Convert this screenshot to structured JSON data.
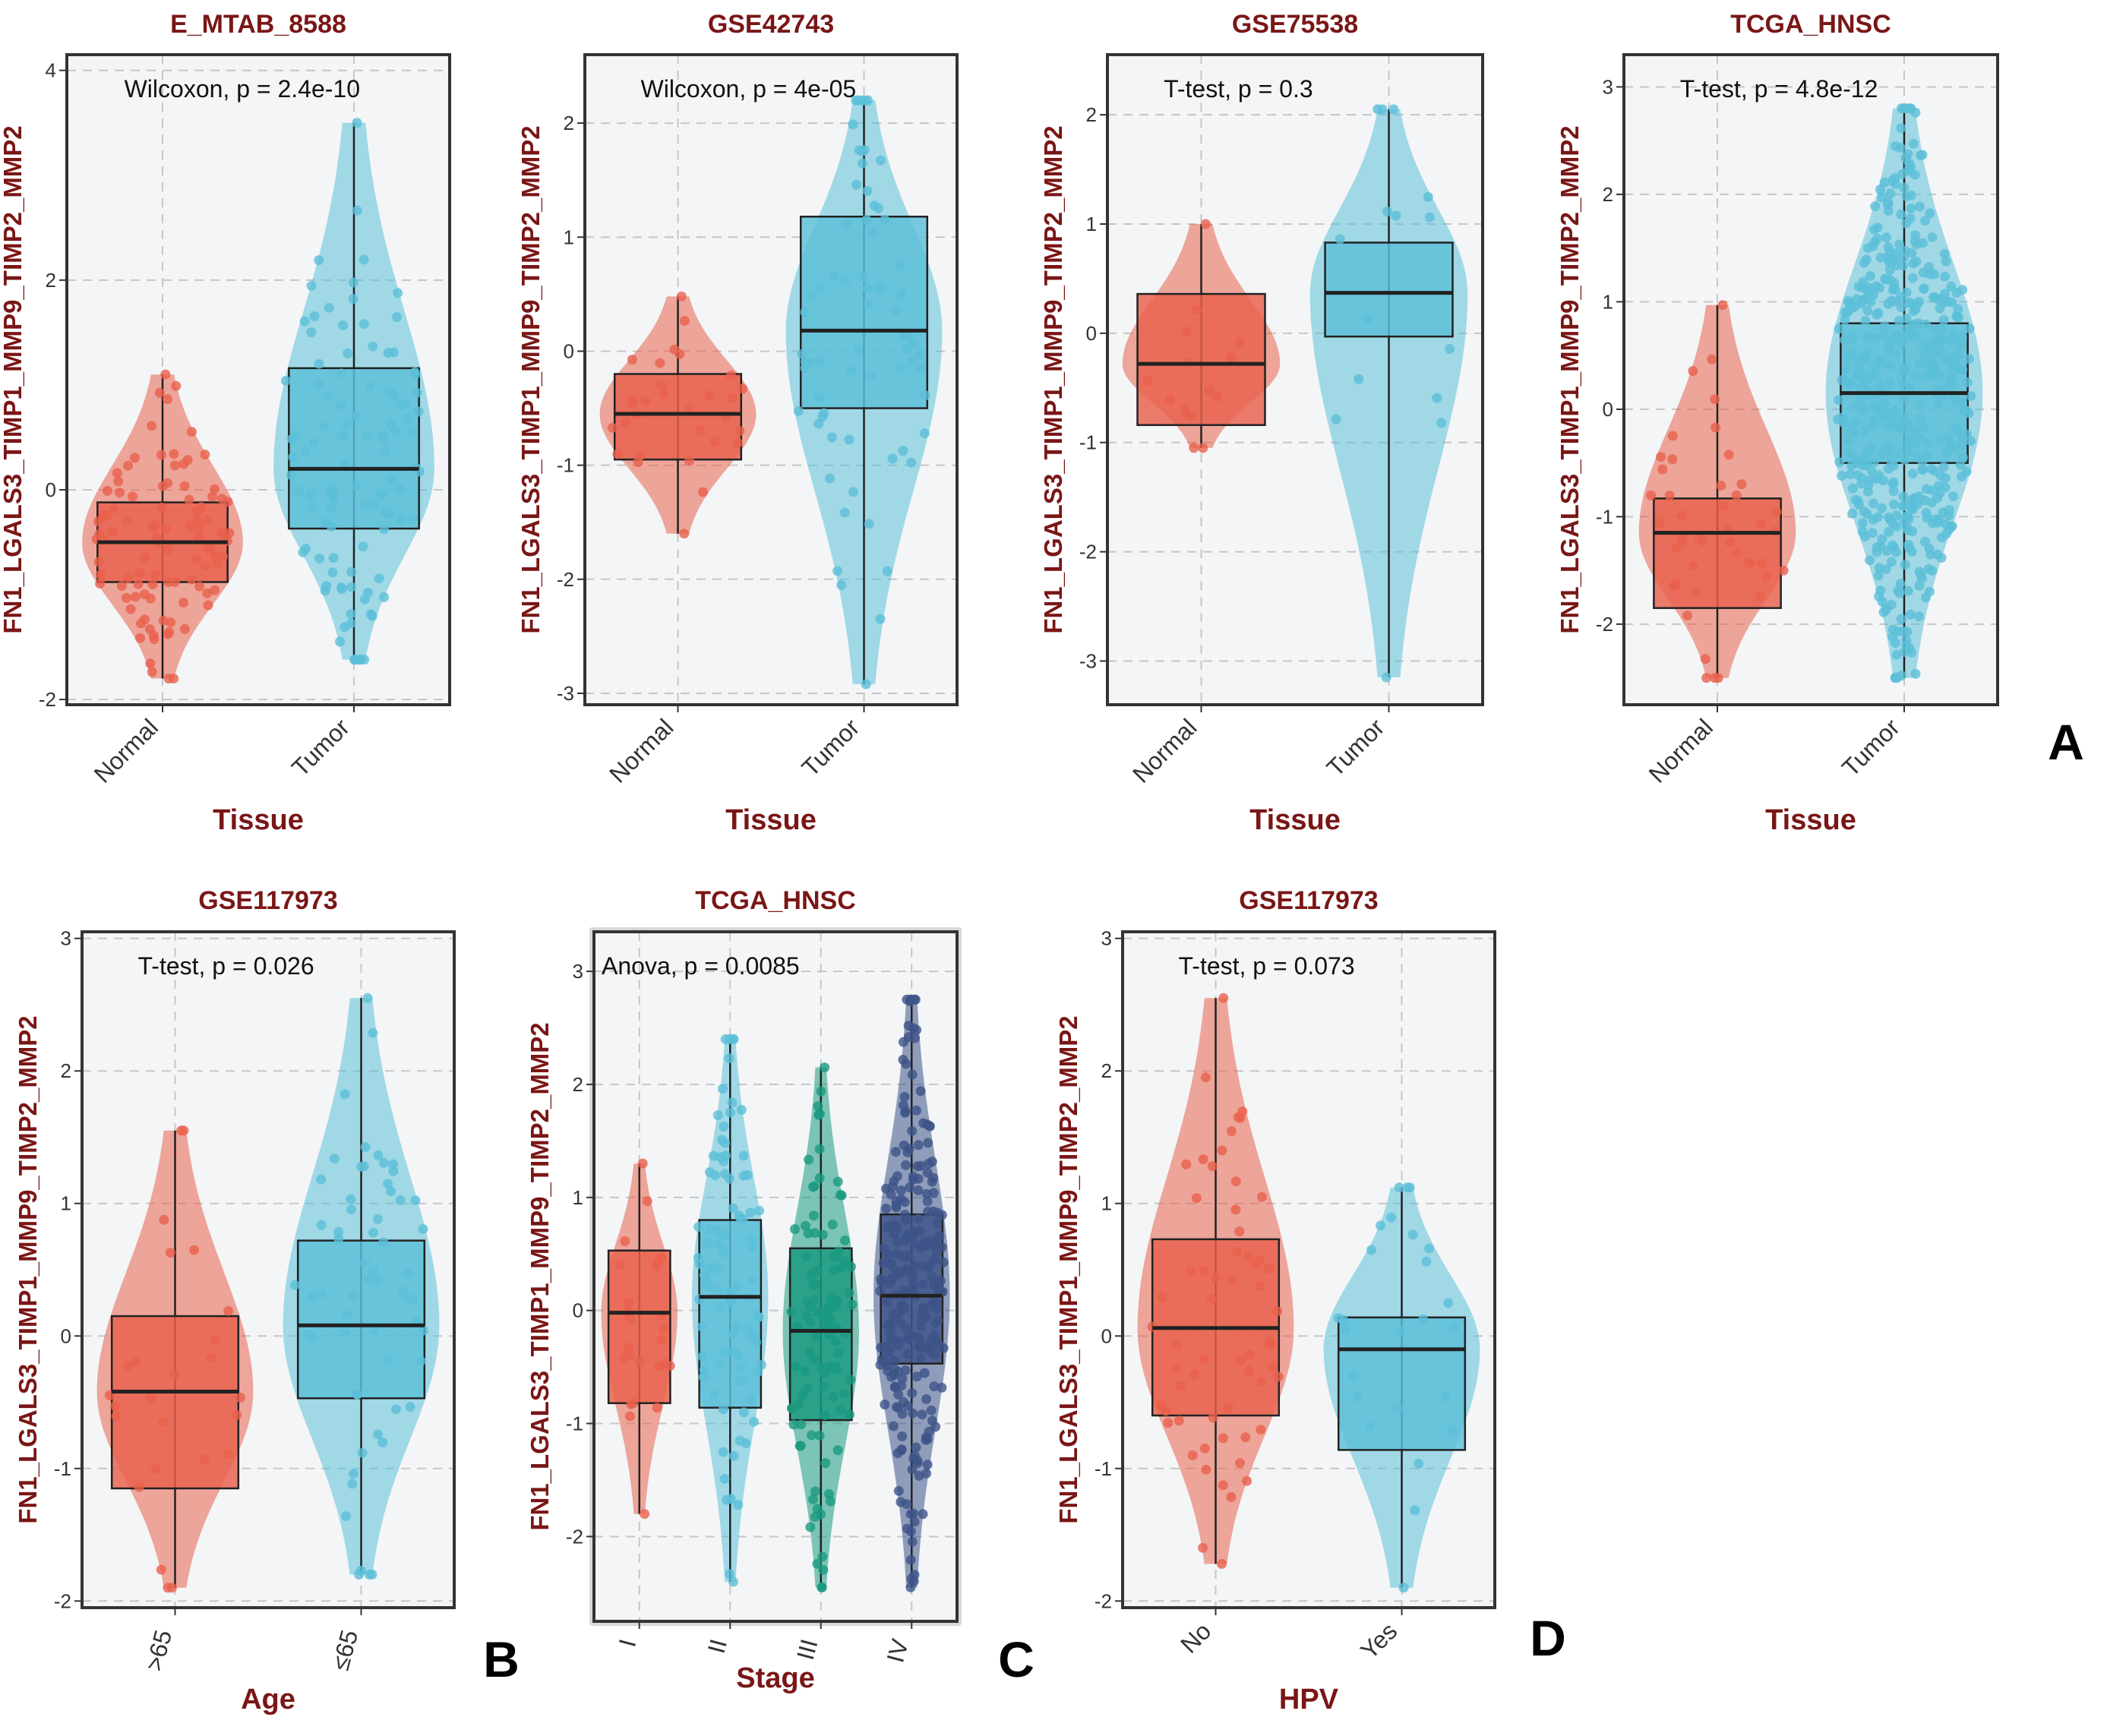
{
  "figure": {
    "panel_letters": [
      "A",
      "B",
      "C",
      "D"
    ],
    "colors": {
      "normal": "#e8604c",
      "tumor": "#5bbfd8",
      "stage_I": "#e8604c",
      "stage_II": "#5bbfd8",
      "stage_III": "#1a9a80",
      "stage_IV": "#3d5488",
      "title": "#7a1616"
    }
  },
  "chart_data": [
    {
      "type": "boxplot",
      "panel": "A",
      "title": "E_MTAB_8588",
      "xlabel": "Tissue",
      "ylabel": "FN1_LGALS3_TIMP1_MMP9_TIMP2_MMP2",
      "ylim": [
        -2.05,
        4.15
      ],
      "yticks": [
        -2,
        0,
        2,
        4
      ],
      "stat_label": "Wilcoxon, p = 2.4e-10",
      "groups": [
        {
          "name": "Normal",
          "color": "#e8604c",
          "n": 100,
          "min": -1.8,
          "q1": -0.88,
          "median": -0.5,
          "q3": -0.12,
          "max": 1.1,
          "violin": [
            -1.8,
            1.1
          ]
        },
        {
          "name": "Tumor",
          "color": "#5bbfd8",
          "n": 110,
          "min": -1.62,
          "q1": -0.37,
          "median": 0.2,
          "q3": 1.16,
          "max": 3.5,
          "violin": [
            -1.62,
            3.5
          ]
        }
      ]
    },
    {
      "type": "boxplot",
      "panel": "A",
      "title": "GSE42743",
      "xlabel": "Tissue",
      "ylabel": "FN1_LGALS3_TIMP1_MMP9_TIMP2_MMP2",
      "ylim": [
        -3.1,
        2.6
      ],
      "yticks": [
        -3,
        -2,
        -1,
        0,
        1,
        2
      ],
      "stat_label": "Wilcoxon, p = 4e-05",
      "groups": [
        {
          "name": "Normal",
          "color": "#e8604c",
          "n": 30,
          "min": -1.6,
          "q1": -0.95,
          "median": -0.55,
          "q3": -0.2,
          "max": 0.48,
          "violin": [
            -1.6,
            0.48
          ]
        },
        {
          "name": "Tumor",
          "color": "#5bbfd8",
          "n": 70,
          "min": -2.92,
          "q1": -0.5,
          "median": 0.18,
          "q3": 1.18,
          "max": 2.2,
          "violin": [
            -2.92,
            2.2
          ]
        }
      ]
    },
    {
      "type": "boxplot",
      "panel": "A",
      "title": "GSE75538",
      "xlabel": "Tissue",
      "ylabel": "FN1_LGALS3_TIMP1_MMP9_TIMP2_MMP2",
      "ylim": [
        -3.4,
        2.55
      ],
      "yticks": [
        -3,
        -2,
        -1,
        0,
        1,
        2
      ],
      "stat_label": "T-test, p = 0.3",
      "groups": [
        {
          "name": "Normal",
          "color": "#e8604c",
          "n": 15,
          "min": -1.05,
          "q1": -0.84,
          "median": -0.28,
          "q3": 0.36,
          "max": 1.0,
          "violin": [
            -1.05,
            1.0
          ]
        },
        {
          "name": "Tumor",
          "color": "#5bbfd8",
          "n": 15,
          "min": -3.15,
          "q1": -0.03,
          "median": 0.37,
          "q3": 0.83,
          "max": 2.05,
          "violin": [
            -3.15,
            2.05
          ]
        }
      ]
    },
    {
      "type": "boxplot",
      "panel": "A",
      "title": "TCGA_HNSC",
      "xlabel": "Tissue",
      "ylabel": "FN1_LGALS3_TIMP1_MMP9_TIMP2_MMP2",
      "ylim": [
        -2.75,
        3.3
      ],
      "yticks": [
        -2,
        -1,
        0,
        1,
        2,
        3
      ],
      "stat_label": "T-test, p = 4.8e-12",
      "groups": [
        {
          "name": "Normal",
          "color": "#e8604c",
          "n": 44,
          "min": -2.5,
          "q1": -1.85,
          "median": -1.15,
          "q3": -0.83,
          "max": 0.97,
          "violin": [
            -2.5,
            0.97
          ]
        },
        {
          "name": "Tumor",
          "color": "#5bbfd8",
          "n": 500,
          "min": -2.5,
          "q1": -0.5,
          "median": 0.15,
          "q3": 0.8,
          "max": 2.8,
          "violin": [
            -2.5,
            2.8
          ]
        }
      ]
    },
    {
      "type": "boxplot",
      "panel": "B",
      "title": "GSE117973",
      "xlabel": "Age",
      "ylabel": "FN1_LGALS3_TIMP1_MMP9_TIMP2_MMP2",
      "ylim": [
        -2.05,
        3.05
      ],
      "yticks": [
        -2,
        -1,
        0,
        1,
        2,
        3
      ],
      "stat_label": "T-test, p = 0.026",
      "groups": [
        {
          "name": ">65",
          "color": "#e8604c",
          "n": 25,
          "min": -1.9,
          "q1": -1.15,
          "median": -0.42,
          "q3": 0.15,
          "max": 1.55,
          "violin": [
            -1.9,
            1.55
          ]
        },
        {
          "name": "≤65",
          "color": "#5bbfd8",
          "n": 60,
          "min": -1.8,
          "q1": -0.47,
          "median": 0.08,
          "q3": 0.72,
          "max": 2.55,
          "violin": [
            -1.8,
            2.55
          ]
        }
      ]
    },
    {
      "type": "boxplot",
      "panel": "C",
      "title": "TCGA_HNSC",
      "xlabel": "Stage",
      "ylabel": "FN1_LGALS3_TIMP1_MMP9_TIMP2_MMP2",
      "ylim": [
        -2.75,
        3.35
      ],
      "yticks": [
        -2,
        -1,
        0,
        1,
        2,
        3
      ],
      "stat_label": "Anova, p = 0.0085",
      "groups": [
        {
          "name": "I",
          "color": "#e8604c",
          "n": 25,
          "min": -1.8,
          "q1": -0.82,
          "median": -0.02,
          "q3": 0.53,
          "max": 1.3,
          "violin": [
            -1.8,
            1.3
          ]
        },
        {
          "name": "II",
          "color": "#5bbfd8",
          "n": 95,
          "min": -2.4,
          "q1": -0.86,
          "median": 0.12,
          "q3": 0.8,
          "max": 2.4,
          "violin": [
            -2.4,
            2.4
          ]
        },
        {
          "name": "III",
          "color": "#1a9a80",
          "n": 110,
          "min": -2.45,
          "q1": -0.97,
          "median": -0.18,
          "q3": 0.55,
          "max": 2.15,
          "violin": [
            -2.45,
            2.15
          ]
        },
        {
          "name": "IV",
          "color": "#3d5488",
          "n": 260,
          "min": -2.45,
          "q1": -0.47,
          "median": 0.13,
          "q3": 0.85,
          "max": 2.75,
          "violin": [
            -2.45,
            2.75
          ]
        }
      ]
    },
    {
      "type": "boxplot",
      "panel": "D",
      "title": "GSE117973",
      "xlabel": "HPV",
      "ylabel": "FN1_LGALS3_TIMP1_MMP9_TIMP2_MMP2",
      "ylim": [
        -2.05,
        3.05
      ],
      "yticks": [
        -2,
        -1,
        0,
        1,
        2,
        3
      ],
      "stat_label": "T-test, p = 0.073",
      "groups": [
        {
          "name": "No",
          "color": "#e8604c",
          "n": 60,
          "min": -1.72,
          "q1": -0.6,
          "median": 0.06,
          "q3": 0.73,
          "max": 2.55,
          "violin": [
            -1.72,
            2.55
          ]
        },
        {
          "name": "Yes",
          "color": "#5bbfd8",
          "n": 25,
          "min": -1.9,
          "q1": -0.86,
          "median": -0.1,
          "q3": 0.14,
          "max": 1.12,
          "violin": [
            -1.9,
            1.12
          ]
        }
      ]
    }
  ]
}
